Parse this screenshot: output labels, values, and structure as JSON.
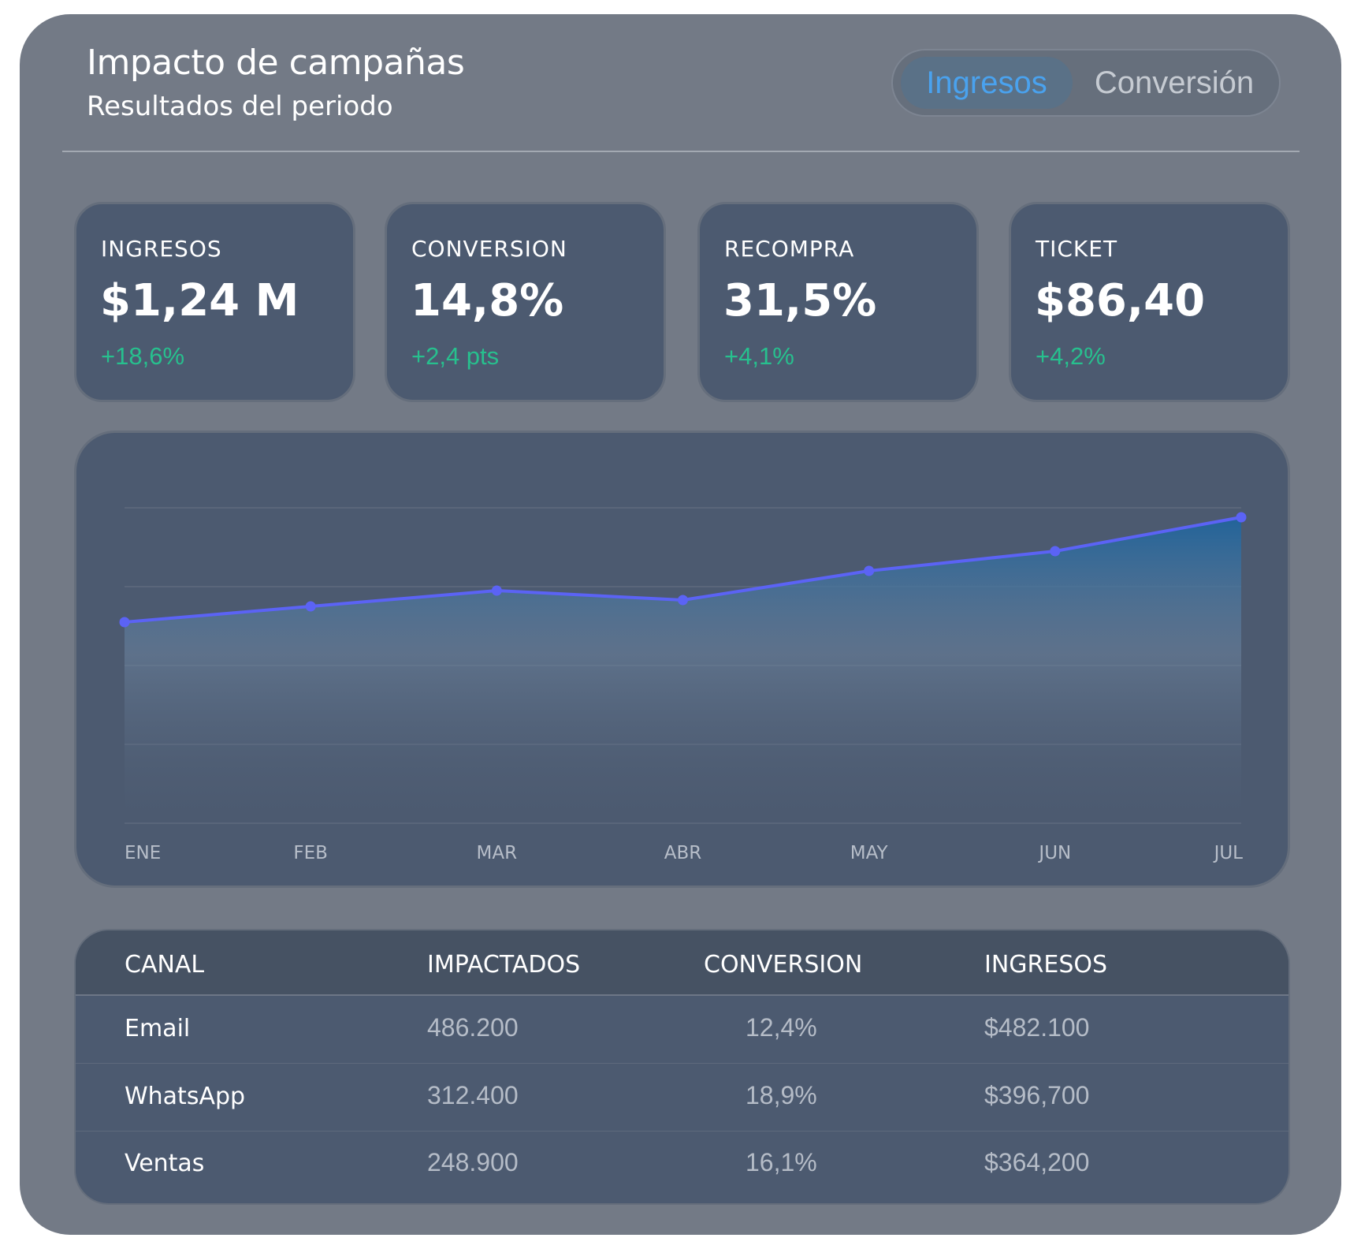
{
  "header": {
    "title": "Impacto de campañas",
    "subtitle": "Resultados del periodo"
  },
  "toggle": {
    "options": [
      "Ingresos",
      "Conversión"
    ],
    "selected": "Ingresos",
    "active_color": "#4aa2ee"
  },
  "kpis": [
    {
      "label": "INGRESOS",
      "value": "$1,24 M",
      "delta": "+18,6%"
    },
    {
      "label": "CONVERSION",
      "value": "14,8%",
      "delta": "+2,4 pts"
    },
    {
      "label": "RECOMPRA",
      "value": "31,5%",
      "delta": "+4,1%"
    },
    {
      "label": "TICKET",
      "value": "$86,40",
      "delta": "+4,2%"
    }
  ],
  "colors": {
    "positive": "#27c08e",
    "line": "#5b63f5",
    "card": "#4c5a70",
    "background": "#737a86"
  },
  "chart_data": {
    "type": "area",
    "categories": [
      "ENE",
      "FEB",
      "MAR",
      "ABR",
      "MAY",
      "JUN",
      "JUL"
    ],
    "values": [
      2.55,
      2.75,
      2.95,
      2.83,
      3.2,
      3.45,
      3.88
    ],
    "ylim": [
      0,
      4
    ],
    "grid": true,
    "title": "",
    "xlabel": "",
    "ylabel": ""
  },
  "table": {
    "columns": [
      "CANAL",
      "IMPACTADOS",
      "CONVERSION",
      "INGRESOS"
    ],
    "rows": [
      {
        "canal": "Email",
        "impactados": "486.200",
        "conversion": "12,4%",
        "ingresos": "$482.100"
      },
      {
        "canal": "WhatsApp",
        "impactados": "312.400",
        "conversion": "18,9%",
        "ingresos": "$396,700"
      },
      {
        "canal": "Ventas",
        "impactados": "248.900",
        "conversion": "16,1%",
        "ingresos": "$364,200"
      }
    ]
  }
}
